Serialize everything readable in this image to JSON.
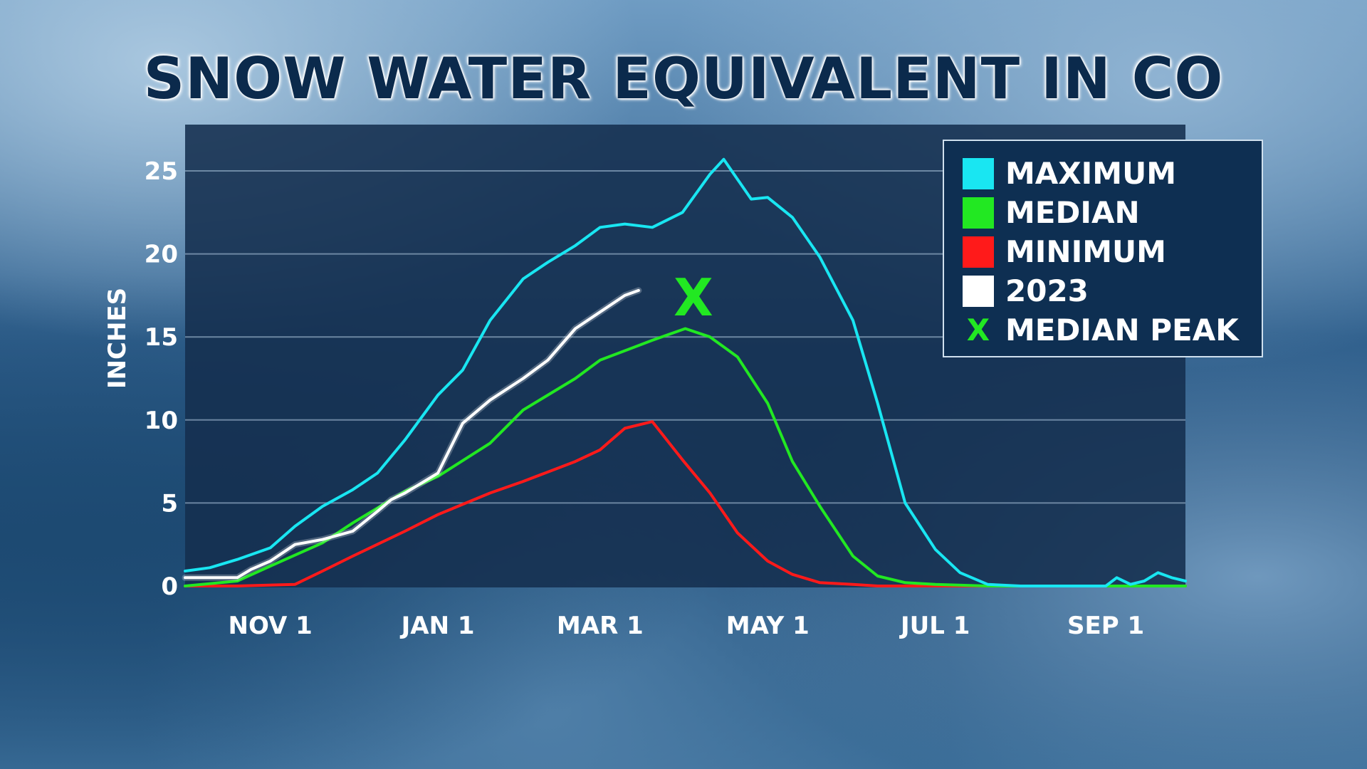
{
  "title": "SNOW WATER EQUIVALENT IN CO",
  "chart_data": {
    "type": "line",
    "title": "SNOW WATER EQUIVALENT IN CO",
    "xlabel": "",
    "ylabel": "INCHES",
    "ylim": [
      0,
      28
    ],
    "x_ticks": [
      "NOV 1",
      "JAN 1",
      "MAR 1",
      "MAY 1",
      "JUL 1",
      "SEP 1"
    ],
    "y_ticks": [
      0,
      5,
      10,
      15,
      20,
      25
    ],
    "grid": true,
    "legend_position": "top-right",
    "series": [
      {
        "name": "MAXIMUM",
        "color": "#19e6f2",
        "x": [
          "Oct 1",
          "Oct 10",
          "Oct 20",
          "Nov 1",
          "Nov 10",
          "Nov 20",
          "Dec 1",
          "Dec 10",
          "Dec 20",
          "Jan 1",
          "Jan 10",
          "Jan 20",
          "Feb 1",
          "Feb 10",
          "Feb 20",
          "Mar 1",
          "Mar 10",
          "Mar 20",
          "Mar 31",
          "Apr 10",
          "Apr 15",
          "Apr 20",
          "Apr 25",
          "May 1",
          "May 10",
          "May 20",
          "Jun 1",
          "Jun 10",
          "Jun 20",
          "Jul 1",
          "Jul 10",
          "Jul 20",
          "Aug 1",
          "Sep 1",
          "Sep 5",
          "Sep 10",
          "Sep 15",
          "Sep 20",
          "Sep 25",
          "Sep 30"
        ],
        "y": [
          0.9,
          1.1,
          1.6,
          2.3,
          3.6,
          4.8,
          5.8,
          6.8,
          8.8,
          11.5,
          13.0,
          16.0,
          18.5,
          19.5,
          20.5,
          21.6,
          21.8,
          21.6,
          22.5,
          24.8,
          25.7,
          24.5,
          23.3,
          23.4,
          22.2,
          19.8,
          16.0,
          11.0,
          5.0,
          2.2,
          0.8,
          0.1,
          0.0,
          0.0,
          0.5,
          0.1,
          0.3,
          0.8,
          0.5,
          0.3
        ]
      },
      {
        "name": "MEDIAN",
        "color": "#22e822",
        "x": [
          "Oct 1",
          "Oct 20",
          "Nov 1",
          "Nov 20",
          "Dec 1",
          "Dec 20",
          "Jan 1",
          "Jan 20",
          "Feb 1",
          "Feb 20",
          "Mar 1",
          "Mar 20",
          "Apr 1",
          "Apr 10",
          "Apr 20",
          "May 1",
          "May 10",
          "May 20",
          "Jun 1",
          "Jun 10",
          "Jun 20",
          "Jul 1",
          "Jul 20",
          "Sep 30"
        ],
        "y": [
          0.0,
          0.3,
          1.2,
          2.6,
          3.8,
          5.7,
          6.6,
          8.6,
          10.6,
          12.5,
          13.6,
          14.8,
          15.5,
          15.0,
          13.8,
          11.0,
          7.5,
          4.8,
          1.8,
          0.6,
          0.2,
          0.1,
          0.0,
          0.0
        ]
      },
      {
        "name": "MINIMUM",
        "color": "#ff1a1a",
        "x": [
          "Oct 1",
          "Oct 20",
          "Nov 10",
          "Nov 20",
          "Dec 1",
          "Dec 20",
          "Jan 1",
          "Jan 20",
          "Feb 1",
          "Feb 20",
          "Mar 1",
          "Mar 10",
          "Mar 20",
          "Mar 31",
          "Apr 10",
          "Apr 20",
          "May 1",
          "May 10",
          "May 20",
          "Jun 1",
          "Jun 10",
          "Sep 30"
        ],
        "y": [
          0.0,
          0.0,
          0.1,
          0.9,
          1.8,
          3.3,
          4.3,
          5.6,
          6.3,
          7.5,
          8.2,
          9.5,
          9.9,
          7.6,
          5.6,
          3.2,
          1.5,
          0.7,
          0.2,
          0.1,
          0.0,
          0.0
        ]
      },
      {
        "name": "2023",
        "color": "#ffffff",
        "x": [
          "Oct 1",
          "Oct 10",
          "Oct 20",
          "Oct 25",
          "Nov 1",
          "Nov 10",
          "Nov 20",
          "Dec 1",
          "Dec 10",
          "Dec 15",
          "Dec 20",
          "Jan 1",
          "Jan 10",
          "Jan 20",
          "Feb 1",
          "Feb 10",
          "Feb 20",
          "Mar 1",
          "Mar 10",
          "Mar 15"
        ],
        "y": [
          0.5,
          0.5,
          0.5,
          1.0,
          1.5,
          2.5,
          2.8,
          3.3,
          4.5,
          5.2,
          5.6,
          6.8,
          9.8,
          11.2,
          12.5,
          13.6,
          15.5,
          16.5,
          17.5,
          17.8
        ]
      }
    ],
    "annotations": [
      {
        "label": "X",
        "name": "MEDIAN PEAK",
        "x": "Apr 4",
        "y": 17.1,
        "color": "#22e822"
      }
    ]
  }
}
